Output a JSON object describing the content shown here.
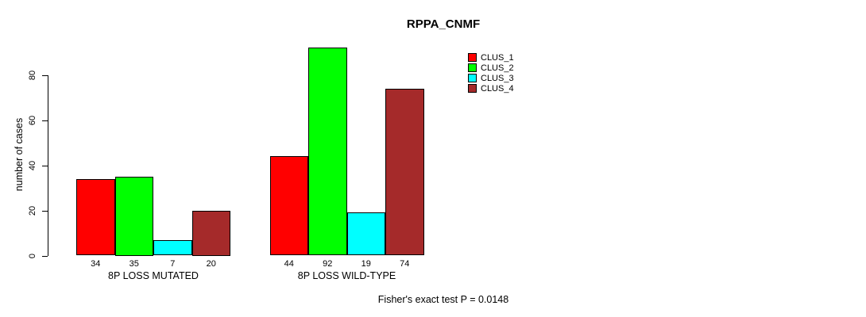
{
  "chart_data": {
    "type": "bar",
    "title": "RPPA_CNMF",
    "ylabel": "number of cases",
    "xlabel": "",
    "ylim": [
      0,
      92
    ],
    "yticks": [
      0,
      20,
      40,
      60,
      80
    ],
    "categories": [
      "8P LOSS MUTATED",
      "8P LOSS WILD-TYPE"
    ],
    "series": [
      {
        "name": "CLUS_1",
        "color": "#ff0000",
        "values": [
          34,
          44
        ]
      },
      {
        "name": "CLUS_2",
        "color": "#00ff00",
        "values": [
          35,
          92
        ]
      },
      {
        "name": "CLUS_3",
        "color": "#00ffff",
        "values": [
          7,
          19
        ]
      },
      {
        "name": "CLUS_4",
        "color": "#a52a2a",
        "values": [
          20,
          74
        ]
      }
    ],
    "show_value_labels": true,
    "grid": false,
    "legend_position": "top-right",
    "annotation": "Fisher's exact test P = 0.0148",
    "bar_border_color": "#000000",
    "axis_color": "#000000",
    "background_color": "#ffffff"
  }
}
